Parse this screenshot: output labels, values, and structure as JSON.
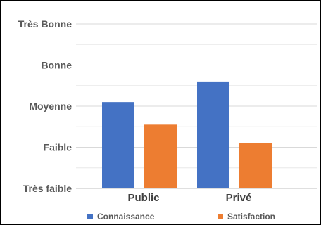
{
  "chart_data": {
    "type": "bar",
    "title": "",
    "xlabel": "",
    "ylabel": "",
    "y_ticks": [
      "Très faible",
      "Faible",
      "Moyenne",
      "Bonne",
      "Très Bonne"
    ],
    "ylim": [
      0,
      4
    ],
    "grid": "horizontal minor and major lines",
    "legend_position": "bottom",
    "categories": [
      "Public",
      "Privé"
    ],
    "series": [
      {
        "name": "Connaissance",
        "color": "#4472C4",
        "values": [
          2.1,
          2.6
        ]
      },
      {
        "name": "Satisfaction",
        "color": "#ED7D31",
        "values": [
          1.55,
          1.1
        ]
      }
    ]
  }
}
